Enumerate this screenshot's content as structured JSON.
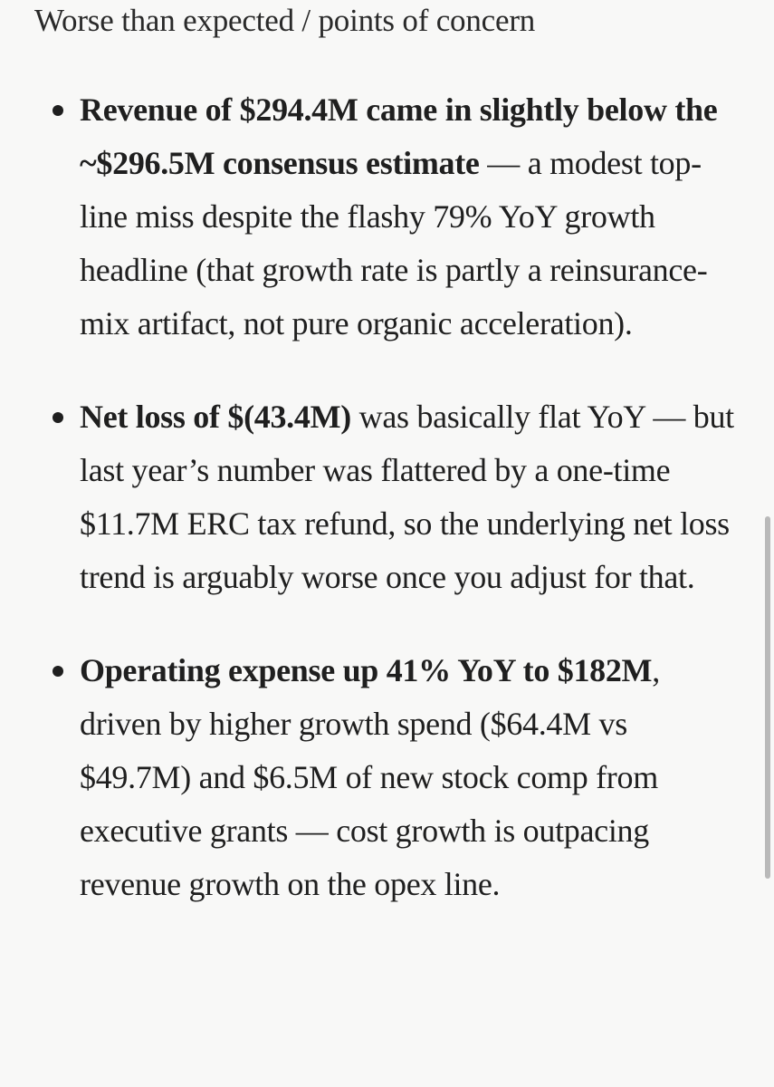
{
  "heading": "Worse than expected / points of concern",
  "items": [
    {
      "bold": "Revenue of $294.4M came in slightly below the ~$296.5M consensus estimate",
      "text": " — a modest top-line miss despite the flashy 79% YoY growth headline (that growth rate is partly a reinsurance-mix artifact, not pure organic acceleration)."
    },
    {
      "bold": "Net loss of $(43.4M)",
      "text": " was basically flat YoY — but last year’s number was flattered by a one-time $11.7M ERC tax refund, so the underlying net loss trend is arguably worse once you adjust for that."
    },
    {
      "bold": "Operating expense up 41% YoY to $182M",
      "text": ", driven by higher growth spend ($64.4M vs $49.7M) and $6.5M of new stock comp from executive grants — cost growth is outpacing revenue growth on the opex line."
    }
  ]
}
